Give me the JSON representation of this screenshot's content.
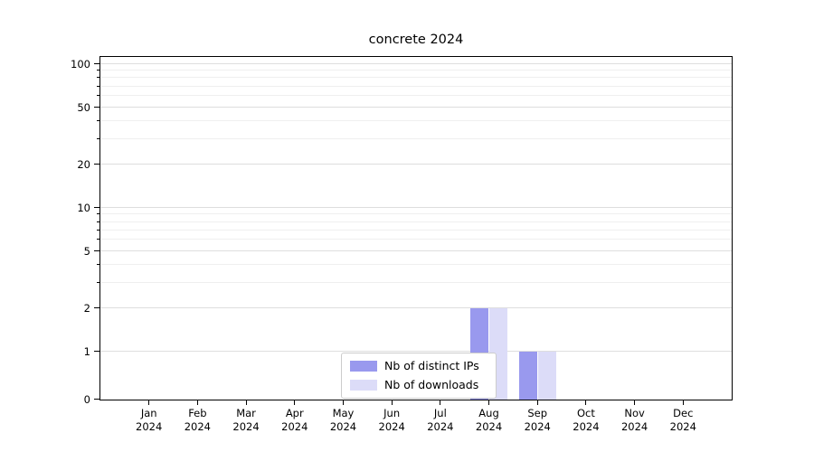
{
  "chart_data": {
    "type": "bar",
    "title": "concrete 2024",
    "categories": [
      "Jan 2024",
      "Feb 2024",
      "Mar 2024",
      "Apr 2024",
      "May 2024",
      "Jun 2024",
      "Jul 2024",
      "Aug 2024",
      "Sep 2024",
      "Oct 2024",
      "Nov 2024",
      "Dec 2024"
    ],
    "series": [
      {
        "name": "Nb of distinct IPs",
        "color": "#9999ee",
        "values": [
          0,
          0,
          0,
          0,
          0,
          0,
          0,
          2,
          1,
          0,
          0,
          0
        ]
      },
      {
        "name": "Nb of downloads",
        "color": "#dcdcf8",
        "values": [
          0,
          0,
          0,
          0,
          0,
          0,
          0,
          2,
          1,
          0,
          0,
          0
        ]
      }
    ],
    "xlabel": "",
    "ylabel": "",
    "y_ticks": [
      0,
      1,
      2,
      5,
      10,
      20,
      50,
      100
    ],
    "y_minor_ticks": [
      3,
      4,
      6,
      7,
      8,
      9,
      30,
      40,
      60,
      70,
      80,
      90
    ],
    "yscale": "symlog",
    "ylim": [
      0,
      100
    ],
    "grid": true,
    "legend_position": "lower center"
  }
}
